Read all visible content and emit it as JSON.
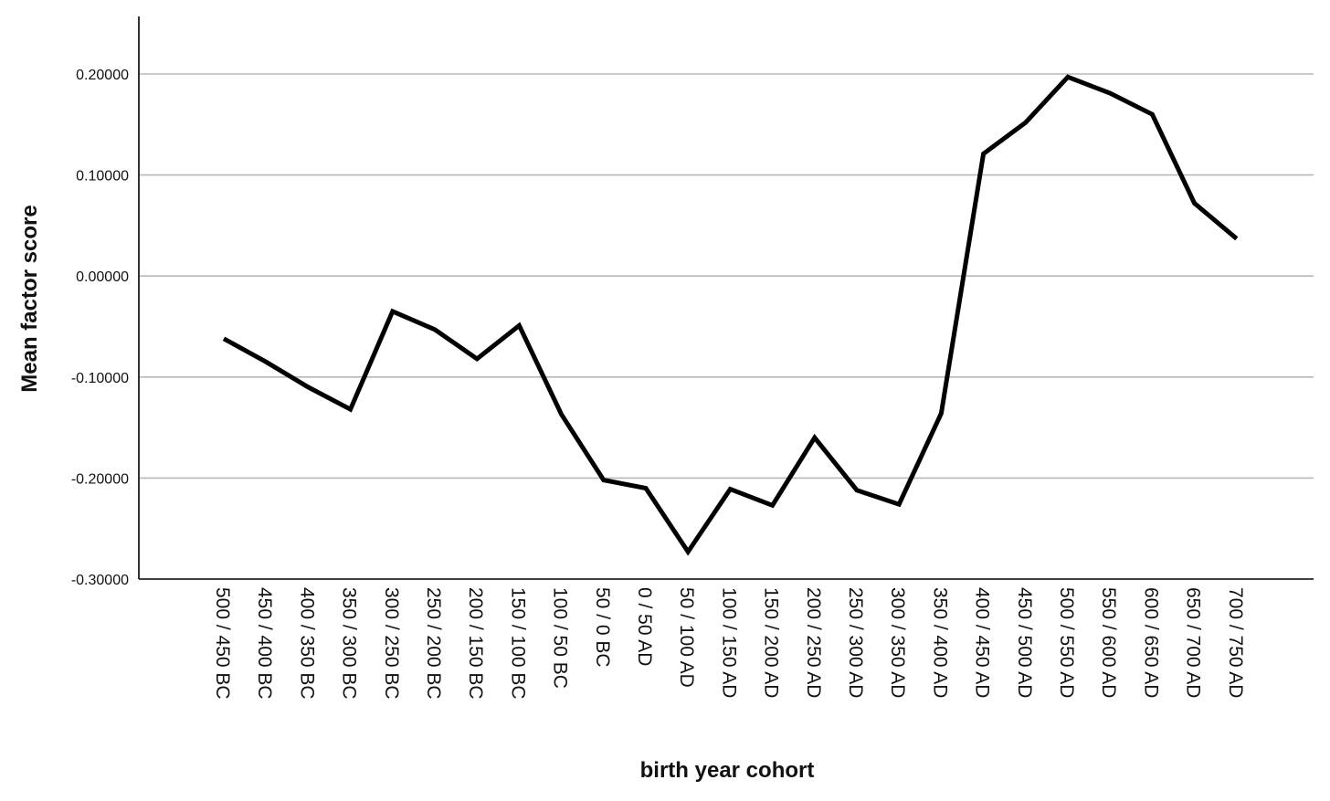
{
  "chart_data": {
    "type": "line",
    "title": "",
    "xlabel": "birth year cohort",
    "ylabel": "Mean factor score",
    "ylim": [
      -0.3,
      0.25
    ],
    "yticks": [
      -0.3,
      -0.2,
      -0.1,
      0.0,
      0.1,
      0.2
    ],
    "ytick_labels": [
      "-0.30000",
      "-0.20000",
      "-0.10000",
      "0.00000",
      "0.10000",
      "0.20000"
    ],
    "grid": "horizontal",
    "legend": "none",
    "line_color": "#000000",
    "grid_color": "#b8b8b8",
    "categories": [
      "500 / 450 BC",
      "450 / 400 BC",
      "400 / 350 BC",
      "350 / 300 BC",
      "300 / 250 BC",
      "250 / 200 BC",
      "200 / 150 BC",
      "150 / 100 BC",
      "100 / 50 BC",
      "50 / 0 BC",
      "0 / 50 AD",
      "50 / 100 AD",
      "100 / 150 AD",
      "150 / 200 AD",
      "200 / 250 AD",
      "250 / 300 AD",
      "300 / 350 AD",
      "350 / 400 AD",
      "400 / 450 AD",
      "450 / 500 AD",
      "500 / 550 AD",
      "550 / 600 AD",
      "600 / 650 AD",
      "650 / 700 AD",
      "700 / 750 AD"
    ],
    "series": [
      {
        "values": [
          -0.062,
          -0.085,
          -0.11,
          -0.132,
          -0.035,
          -0.053,
          -0.082,
          -0.049,
          -0.137,
          -0.202,
          -0.21,
          -0.273,
          -0.211,
          -0.227,
          -0.16,
          -0.212,
          -0.226,
          -0.136,
          0.121,
          0.152,
          0.197,
          0.181,
          0.16,
          0.072,
          0.037
        ]
      }
    ]
  }
}
